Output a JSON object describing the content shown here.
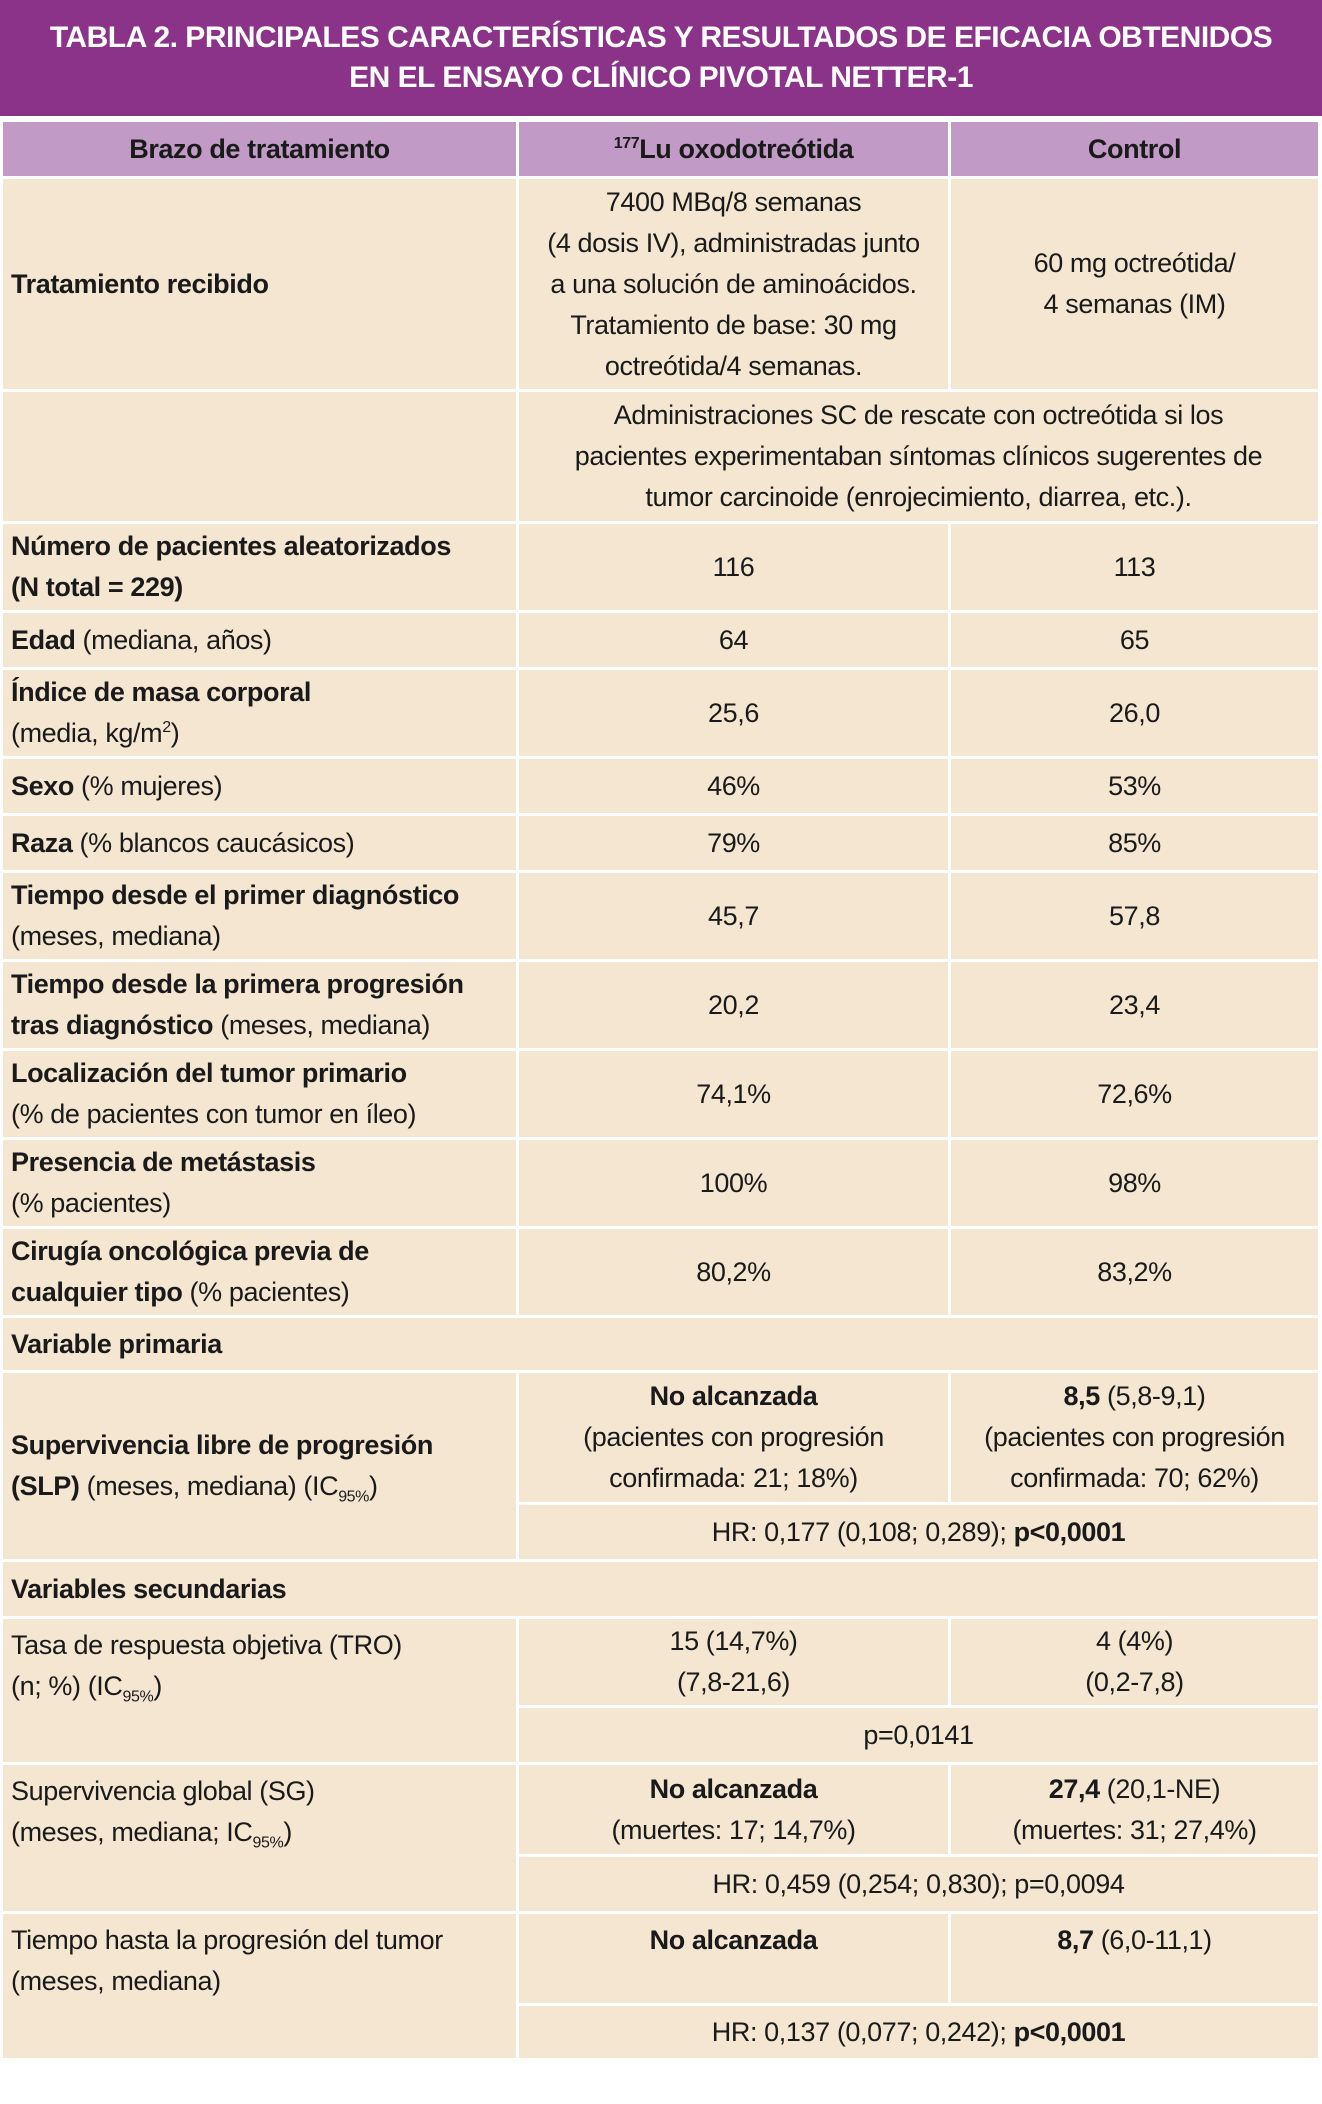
{
  "title": "TABLA 2. PRINCIPALES CARACTERÍSTICAS Y RESULTADOS DE EFICACIA OBTENIDOS\nEN EL ENSAYO CLÍNICO PIVOTAL NETTER-1",
  "colors": {
    "title_bg": "#8b3389",
    "header_bg": "#c19ac6",
    "cell_bg": "#f5e6d2"
  },
  "headers": [
    [
      [
        "Brazo de tratamiento",
        ""
      ]
    ],
    [
      [
        "177",
        "sup"
      ],
      [
        "Lu oxodotreótida",
        ""
      ]
    ],
    [
      [
        "Control",
        ""
      ]
    ]
  ],
  "rows": [
    {
      "h": 213,
      "label": [
        [
          "Tratamiento recibido",
          "b"
        ]
      ],
      "c2": [
        [
          "7400 MBq/8 semanas\n(4 dosis IV), administradas junto\na una solución de aminoácidos.\nTratamiento de base: 30 mg\noctreótida/4 semanas.",
          ""
        ]
      ],
      "c3": [
        [
          "60 mg octreótida/\n4 semanas (IM)",
          ""
        ]
      ]
    },
    {
      "h": 132,
      "label": [],
      "span": [
        [
          "Administraciones SC de rescate con octreótida si los\npacientes experimentaban síntomas clínicos sugerentes de\ntumor carcinoide (enrojecimiento, diarrea, etc.).",
          ""
        ]
      ]
    },
    {
      "h": 89,
      "label": [
        [
          "Número de pacientes aleatorizados\n(N total = 229)",
          "b"
        ]
      ],
      "c2": [
        [
          "116",
          ""
        ]
      ],
      "c3": [
        [
          "113",
          ""
        ]
      ]
    },
    {
      "h": 57,
      "label": [
        [
          "Edad",
          "b"
        ],
        [
          " (mediana, años)",
          ""
        ]
      ],
      "c2": [
        [
          "64",
          ""
        ]
      ],
      "c3": [
        [
          "65",
          ""
        ]
      ]
    },
    {
      "h": 89,
      "label": [
        [
          "Índice de masa corporal",
          "b"
        ],
        [
          "\n(media, kg/m",
          ""
        ],
        [
          "2",
          "sup"
        ],
        [
          ")",
          ""
        ]
      ],
      "c2": [
        [
          "25,6",
          ""
        ]
      ],
      "c3": [
        [
          "26,0",
          ""
        ]
      ]
    },
    {
      "h": 57,
      "label": [
        [
          "Sexo",
          "b"
        ],
        [
          " (% mujeres)",
          ""
        ]
      ],
      "c2": [
        [
          "46%",
          ""
        ]
      ],
      "c3": [
        [
          "53%",
          ""
        ]
      ]
    },
    {
      "h": 57,
      "label": [
        [
          "Raza",
          "b"
        ],
        [
          " (% blancos caucásicos)",
          ""
        ]
      ],
      "c2": [
        [
          "79%",
          ""
        ]
      ],
      "c3": [
        [
          "85%",
          ""
        ]
      ]
    },
    {
      "h": 89,
      "label": [
        [
          "Tiempo desde el primer diagnóstico",
          "b"
        ],
        [
          "\n(meses, mediana)",
          ""
        ]
      ],
      "c2": [
        [
          "45,7",
          ""
        ]
      ],
      "c3": [
        [
          "57,8",
          ""
        ]
      ]
    },
    {
      "h": 89,
      "label": [
        [
          "Tiempo desde la primera progresión\ntras diagnóstico",
          "b"
        ],
        [
          " (meses, mediana)",
          ""
        ]
      ],
      "c2": [
        [
          "20,2",
          ""
        ]
      ],
      "c3": [
        [
          "23,4",
          ""
        ]
      ]
    },
    {
      "h": 89,
      "label": [
        [
          "Localización del tumor primario",
          "b"
        ],
        [
          "\n(% de pacientes con tumor en íleo)",
          ""
        ]
      ],
      "c2": [
        [
          "74,1%",
          ""
        ]
      ],
      "c3": [
        [
          "72,6%",
          ""
        ]
      ]
    },
    {
      "h": 89,
      "label": [
        [
          "Presencia de metástasis",
          "b"
        ],
        [
          "\n(% pacientes)",
          ""
        ]
      ],
      "c2": [
        [
          "100%",
          ""
        ]
      ],
      "c3": [
        [
          "98%",
          ""
        ]
      ]
    },
    {
      "h": 89,
      "label": [
        [
          "Cirugía oncológica previa de\ncualquier tipo",
          "b"
        ],
        [
          " (% pacientes)",
          ""
        ]
      ],
      "c2": [
        [
          "80,2%",
          ""
        ]
      ],
      "c3": [
        [
          "83,2%",
          ""
        ]
      ]
    },
    {
      "h": 55,
      "section": [
        [
          "Variable primaria",
          "b"
        ]
      ]
    },
    {
      "h": 132,
      "label": [
        [
          "Supervivencia libre de progresión\n(SLP)",
          "b"
        ],
        [
          " (meses, mediana) (IC",
          ""
        ],
        [
          "95%",
          "sub"
        ],
        [
          ")",
          ""
        ]
      ],
      "rowspan": 2,
      "c2": [
        [
          "No alcanzada",
          "b"
        ],
        [
          "\n(pacientes con progresión\nconfirmada: 21; 18%)",
          ""
        ]
      ],
      "c3": [
        [
          "8,5",
          "b"
        ],
        [
          " (5,8-9,1)\n(pacientes con progresión\nconfirmada: 70; 62%)",
          ""
        ]
      ]
    },
    {
      "h": 57,
      "skiplabel": true,
      "span": [
        [
          "HR: 0,177 (0,108; 0,289); ",
          ""
        ],
        [
          "p<0,0001",
          "b"
        ]
      ]
    },
    {
      "h": 57,
      "section": [
        [
          "Variables secundarias",
          "b"
        ]
      ]
    },
    {
      "h": 89,
      "label": [
        [
          "Tasa de respuesta objetiva (TRO)\n(n; %) (IC",
          ""
        ],
        [
          "95%",
          "sub"
        ],
        [
          ")",
          ""
        ]
      ],
      "rowspan": 2,
      "top": true,
      "c2": [
        [
          "15 (14,7%)\n(7,8-21,6)",
          ""
        ]
      ],
      "c3": [
        [
          "4 (4%)\n(0,2-7,8)",
          ""
        ]
      ]
    },
    {
      "h": 57,
      "skiplabel": true,
      "span": [
        [
          "p=0,0141",
          ""
        ]
      ]
    },
    {
      "h": 92,
      "label": [
        [
          "Supervivencia global (SG)\n(meses, mediana; IC",
          ""
        ],
        [
          "95%",
          "sub"
        ],
        [
          ")",
          ""
        ]
      ],
      "rowspan": 2,
      "top": true,
      "c2": [
        [
          "No alcanzada",
          "b"
        ],
        [
          "\n(muertes: 17; 14,7%)",
          ""
        ]
      ],
      "c3": [
        [
          "27,4",
          "b"
        ],
        [
          " (20,1-NE)\n(muertes: 31; 27,4%)",
          ""
        ]
      ]
    },
    {
      "h": 57,
      "skiplabel": true,
      "span": [
        [
          "HR: 0,459 (0,254; 0,830); p=0,0094",
          ""
        ]
      ]
    },
    {
      "h": 92,
      "label": [
        [
          "Tiempo hasta la progresión del tumor\n(meses, mediana)",
          ""
        ]
      ],
      "rowspan": 2,
      "top": true,
      "ctop": true,
      "c2": [
        [
          "No alcanzada",
          "b"
        ]
      ],
      "c3": [
        [
          "8,7",
          "b"
        ],
        [
          " (6,0-11,1)",
          ""
        ]
      ]
    },
    {
      "h": 55,
      "skiplabel": true,
      "span": [
        [
          "HR: 0,137 (0,077; 0,242); ",
          ""
        ],
        [
          "p<0,0001",
          "b"
        ]
      ]
    }
  ]
}
